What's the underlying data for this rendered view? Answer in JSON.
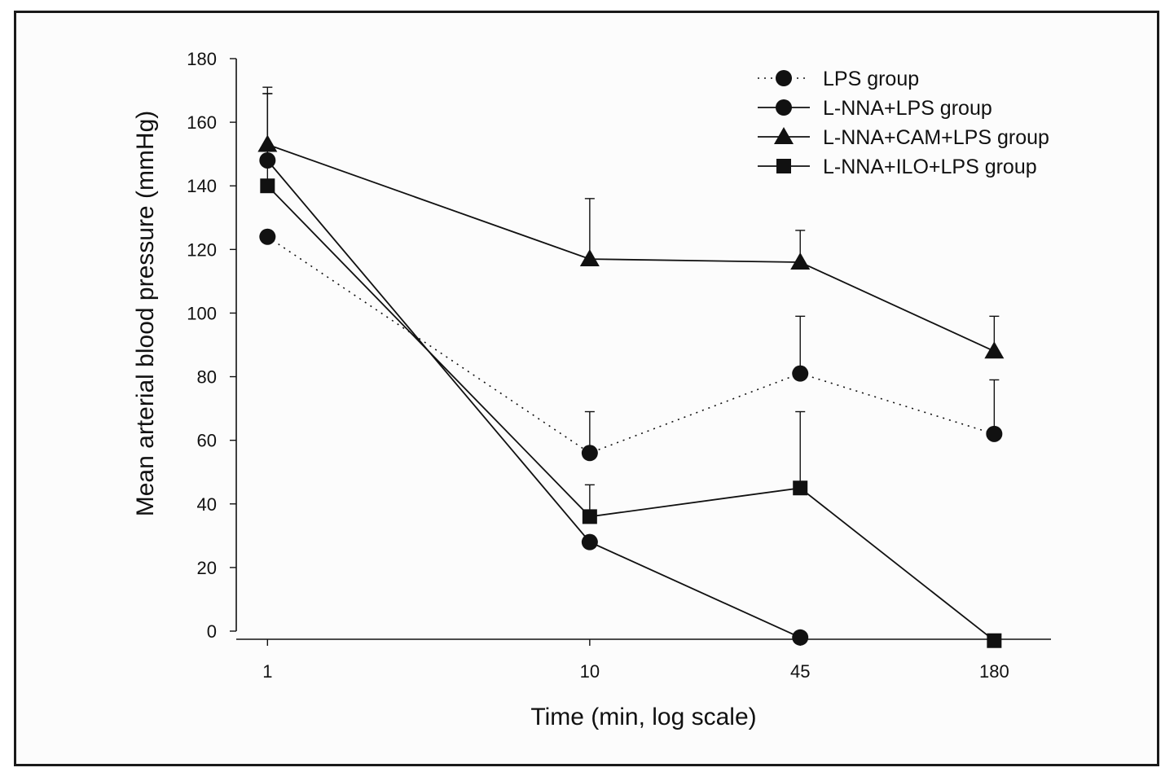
{
  "chart_data": {
    "type": "line",
    "title": "",
    "xlabel": "Time (min, log scale)",
    "ylabel": "Mean arterial blood pressure (mmHg)",
    "x_scale": "log",
    "x": [
      1,
      10,
      45,
      180
    ],
    "x_tick_labels": [
      "1",
      "10",
      "45",
      "180"
    ],
    "xlim": [
      0.8,
      270
    ],
    "ylim": [
      0,
      180
    ],
    "y_ticks": [
      0,
      20,
      40,
      60,
      80,
      100,
      120,
      140,
      160,
      180
    ],
    "y_tick_labels": [
      "0",
      "20",
      "40",
      "60",
      "80",
      "100",
      "120",
      "140",
      "160",
      "180"
    ],
    "grid": false,
    "legend_position": "top-right",
    "series": [
      {
        "name": "LPS group",
        "marker": "circle",
        "line_style": "dotted",
        "color": "#111111",
        "values": [
          124,
          56,
          81,
          62
        ],
        "error": [
          0,
          13,
          18,
          17
        ]
      },
      {
        "name": "L-NNA+LPS group",
        "marker": "circle",
        "line_style": "solid",
        "color": "#111111",
        "values": [
          148,
          28,
          -2,
          null
        ],
        "error": [
          21,
          0,
          0,
          0
        ]
      },
      {
        "name": "L-NNA+CAM+LPS group",
        "marker": "triangle",
        "line_style": "solid",
        "color": "#111111",
        "values": [
          153,
          117,
          116,
          88
        ],
        "error": [
          18,
          19,
          10,
          11
        ]
      },
      {
        "name": "L-NNA+ILO+LPS group",
        "marker": "square",
        "line_style": "solid",
        "color": "#111111",
        "values": [
          140,
          36,
          45,
          -3
        ],
        "error": [
          29,
          10,
          24,
          0
        ]
      }
    ]
  }
}
